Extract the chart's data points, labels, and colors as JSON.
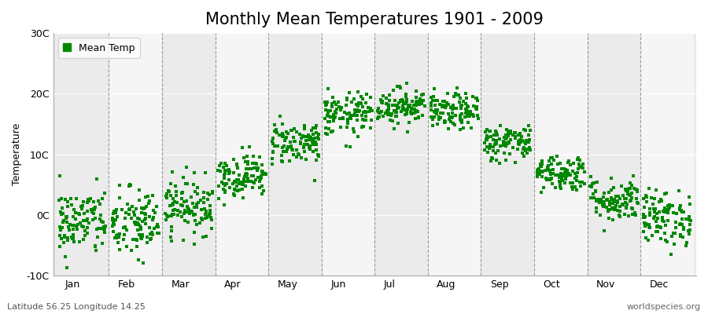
{
  "title": "Monthly Mean Temperatures 1901 - 2009",
  "ylabel": "Temperature",
  "ylim": [
    -10,
    30
  ],
  "yticks": [
    -10,
    0,
    10,
    20,
    30
  ],
  "ytick_labels": [
    "-10C",
    "0C",
    "10C",
    "20C",
    "30C"
  ],
  "months": [
    "Jan",
    "Feb",
    "Mar",
    "Apr",
    "May",
    "Jun",
    "Jul",
    "Aug",
    "Sep",
    "Oct",
    "Nov",
    "Dec"
  ],
  "month_means": [
    -1.2,
    -1.5,
    1.5,
    6.5,
    12.0,
    16.5,
    18.0,
    17.0,
    12.0,
    7.0,
    2.5,
    -0.5
  ],
  "month_stds": [
    2.8,
    3.0,
    2.3,
    1.8,
    1.8,
    1.8,
    1.5,
    1.5,
    1.5,
    1.5,
    1.8,
    2.3
  ],
  "n_years": 109,
  "dot_color": "#008800",
  "dot_size": 10,
  "bg_color_odd": "#ebebeb",
  "bg_color_even": "#f5f5f5",
  "fig_background": "#ffffff",
  "grid_color": "#999999",
  "legend_label": "Mean Temp",
  "subtitle_left": "Latitude 56.25 Longitude 14.25",
  "subtitle_right": "worldspecies.org",
  "title_fontsize": 15,
  "label_fontsize": 9,
  "tick_fontsize": 9,
  "seed": 42
}
